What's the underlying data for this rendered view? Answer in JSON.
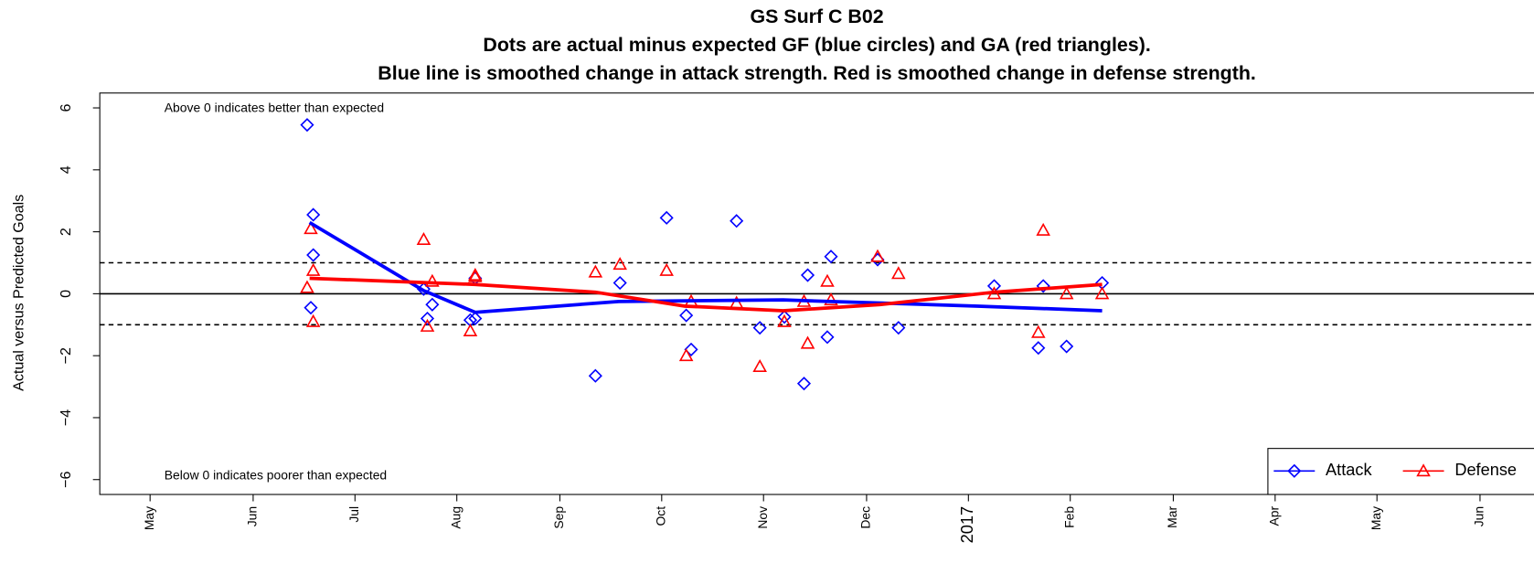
{
  "chart_data": {
    "type": "scatter",
    "title": [
      "GS Surf C B02",
      "Dots are actual minus expected GF (blue circles) and GA (red triangles).",
      "Blue line is smoothed change in attack strength. Red is smoothed change in defense strength."
    ],
    "y_label": "Actual versus Predicted Goals",
    "annotations": [
      "Above 0 indicates better than expected",
      "Below 0 indicates poorer than expected"
    ],
    "xlim": [
      2016.292,
      2017.461
    ],
    "ylim": [
      -6.48,
      6.48
    ],
    "xticks": [
      {
        "value": 2016.333,
        "label": "May"
      },
      {
        "value": 2016.417,
        "label": "Jun"
      },
      {
        "value": 2016.5,
        "label": "Jul"
      },
      {
        "value": 2016.583,
        "label": "Aug"
      },
      {
        "value": 2016.667,
        "label": "Sep"
      },
      {
        "value": 2016.75,
        "label": "Oct"
      },
      {
        "value": 2016.833,
        "label": "Nov"
      },
      {
        "value": 2016.917,
        "label": "Dec"
      },
      2017,
      {
        "value": 2017.083,
        "label": "Feb"
      },
      {
        "value": 2017.167,
        "label": "Mar"
      },
      {
        "value": 2017.25,
        "label": "Apr"
      },
      {
        "value": 2017.333,
        "label": "May"
      },
      {
        "value": 2017.417,
        "label": "Jun"
      }
    ],
    "yticks": [
      {
        "value": -6,
        "label": "−6"
      },
      {
        "value": -4,
        "label": "−4"
      },
      {
        "value": -2,
        "label": "−2"
      },
      0,
      2,
      4,
      6
    ],
    "hlines": [
      {
        "value": 0,
        "style": "solid"
      },
      {
        "value": 1,
        "style": "dashed"
      },
      {
        "value": -1,
        "style": "dashed"
      }
    ],
    "legend": "bottom-right",
    "series": [
      {
        "name": "Attack",
        "color": "#0000ff",
        "marker": "diamond",
        "x": [
          2016.461,
          2016.466,
          2016.466,
          2016.464,
          2016.556,
          2016.559,
          2016.563,
          2016.598,
          2016.594,
          2016.598,
          2016.696,
          2016.716,
          2016.754,
          2016.77,
          2016.774,
          2016.811,
          2016.83,
          2016.85,
          2016.866,
          2016.869,
          2016.885,
          2016.888,
          2016.926,
          2016.943,
          2017.021,
          2017.057,
          2017.061,
          2017.08,
          2017.109
        ],
        "values": [
          5.45,
          2.55,
          1.25,
          -0.45,
          0.15,
          -0.8,
          -0.35,
          0.5,
          -0.85,
          -0.8,
          -2.65,
          0.35,
          2.45,
          -0.7,
          -1.8,
          2.35,
          -1.1,
          -0.75,
          -2.9,
          0.6,
          -1.4,
          1.2,
          1.1,
          -1.1,
          0.25,
          -1.75,
          0.25,
          -1.7,
          0.35
        ],
        "smooth": {
          "x": [
            2016.463,
            2016.556,
            2016.598,
            2016.715,
            2016.849,
            2017.008,
            2017.109
          ],
          "values": [
            2.3,
            0.1,
            -0.6,
            -0.25,
            -0.2,
            -0.4,
            -0.55
          ]
        }
      },
      {
        "name": "Defense",
        "color": "#ff0000",
        "marker": "triangle",
        "x": [
          2016.461,
          2016.464,
          2016.466,
          2016.466,
          2016.556,
          2016.559,
          2016.563,
          2016.594,
          2016.598,
          2016.598,
          2016.696,
          2016.716,
          2016.754,
          2016.77,
          2016.774,
          2016.811,
          2016.83,
          2016.85,
          2016.866,
          2016.869,
          2016.885,
          2016.888,
          2016.926,
          2016.943,
          2017.021,
          2017.057,
          2017.061,
          2017.08,
          2017.109
        ],
        "values": [
          0.2,
          2.1,
          0.75,
          -0.9,
          1.75,
          -1.05,
          0.4,
          -1.2,
          0.6,
          0.55,
          0.7,
          0.95,
          0.75,
          -2.0,
          -0.25,
          -0.3,
          -2.35,
          -0.9,
          -0.25,
          -1.6,
          0.4,
          -0.2,
          1.2,
          0.65,
          0.0,
          -1.25,
          2.05,
          0.0,
          0.0
        ],
        "smooth": {
          "x": [
            2016.463,
            2016.598,
            2016.696,
            2016.769,
            2016.849,
            2016.928,
            2017.021,
            2017.109
          ],
          "values": [
            0.5,
            0.3,
            0.05,
            -0.4,
            -0.55,
            -0.35,
            0.05,
            0.3
          ]
        }
      }
    ]
  }
}
